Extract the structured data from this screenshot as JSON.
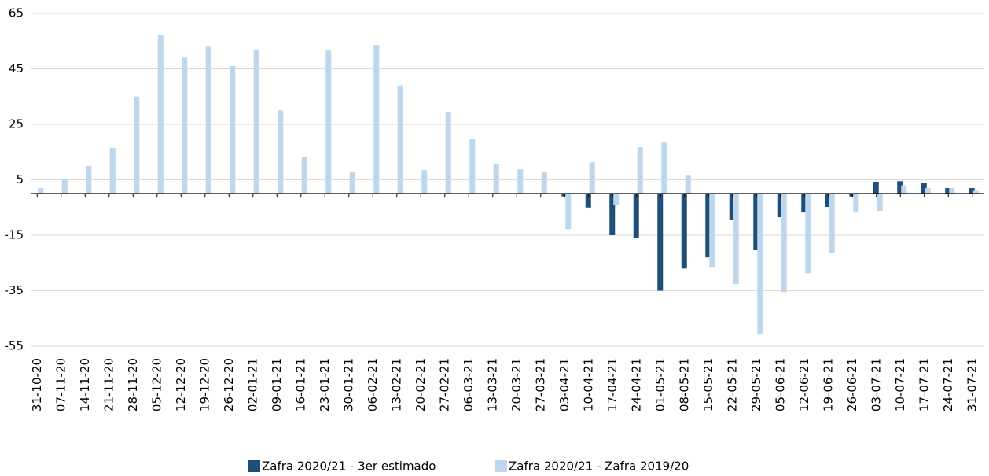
{
  "chart_data": {
    "type": "bar",
    "categories": [
      "31-10-20",
      "07-11-20",
      "14-11-20",
      "21-11-20",
      "28-11-20",
      "05-12-20",
      "12-12-20",
      "19-12-20",
      "26-12-20",
      "02-01-21",
      "09-01-21",
      "16-01-21",
      "23-01-21",
      "30-01-21",
      "06-02-21",
      "13-02-21",
      "20-02-21",
      "27-02-21",
      "06-03-21",
      "13-03-21",
      "20-03-21",
      "27-03-21",
      "03-04-21",
      "10-04-21",
      "17-04-21",
      "24-04-21",
      "01-05-21",
      "08-05-21",
      "15-05-21",
      "22-05-21",
      "29-05-21",
      "05-06-21",
      "12-06-21",
      "19-06-21",
      "26-06-21",
      "03-07-21",
      "10-07-21",
      "17-07-21",
      "24-07-21",
      "31-07-21"
    ],
    "series": [
      {
        "name": "Zafra 2020/21 - 3er estimado",
        "color": "#1f4e79",
        "values": [
          null,
          null,
          null,
          null,
          null,
          null,
          null,
          null,
          null,
          null,
          null,
          null,
          null,
          null,
          null,
          null,
          null,
          null,
          null,
          null,
          null,
          null,
          -1,
          -5,
          -15,
          -16,
          -35,
          -27,
          -23,
          -9.6,
          -20.4,
          -8.5,
          -6.8,
          -4.8,
          -1,
          4.3,
          4.5,
          4,
          2,
          2
        ]
      },
      {
        "name": "Zafra 2020/21 - Zafra 2019/20",
        "color": "#bdd7ee",
        "values": [
          2,
          5.4,
          10,
          16.5,
          35,
          57.3,
          49,
          53,
          46,
          52,
          30,
          13.3,
          51.6,
          8,
          53.6,
          39,
          8.5,
          29.5,
          19.6,
          10.8,
          8.8,
          8,
          -12.8,
          11.3,
          -4,
          16.7,
          18.4,
          6.5,
          -26.4,
          -32.6,
          -50.5,
          -35.5,
          -28.7,
          -21.3,
          -6.8,
          -6.2,
          3,
          2,
          2,
          1
        ]
      }
    ],
    "ylim": [
      -55,
      65
    ],
    "yticks": [
      -55,
      -35,
      -15,
      5,
      25,
      45,
      65
    ],
    "grid": true
  }
}
